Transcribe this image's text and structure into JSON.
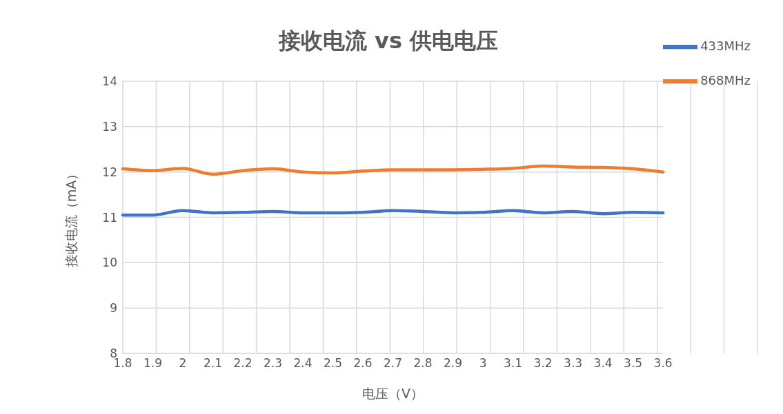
{
  "chart_data": {
    "type": "line",
    "title": "接收电流 vs 供电电压",
    "xlabel": "电压（V）",
    "ylabel": "接收电流（mA）",
    "categories": [
      "1.8",
      "1.9",
      "2",
      "2.1",
      "2.2",
      "2.3",
      "2.4",
      "2.5",
      "2.6",
      "2.7",
      "2.8",
      "2.9",
      "3",
      "3.1",
      "3.2",
      "3.3",
      "3.4",
      "3.5",
      "3.6"
    ],
    "series": [
      {
        "name": "433MHz",
        "color": "#4472c4",
        "values": [
          11.05,
          11.05,
          11.15,
          11.1,
          11.11,
          11.13,
          11.1,
          11.1,
          11.11,
          11.15,
          11.13,
          11.1,
          11.11,
          11.15,
          11.1,
          11.13,
          11.08,
          11.11,
          11.1
        ]
      },
      {
        "name": "868MHz",
        "color": "#ed7d31",
        "values": [
          12.07,
          12.03,
          12.08,
          11.95,
          12.03,
          12.07,
          12,
          11.98,
          12.02,
          12.05,
          12.05,
          12.05,
          12.06,
          12.08,
          12.13,
          12.11,
          12.1,
          12.07,
          12
        ]
      }
    ],
    "ylim": [
      8,
      14
    ],
    "yticks": [
      8,
      9,
      10,
      11,
      12,
      13,
      14
    ],
    "grid": true,
    "legend": "top right",
    "marker": "none",
    "line_style": "solid"
  }
}
